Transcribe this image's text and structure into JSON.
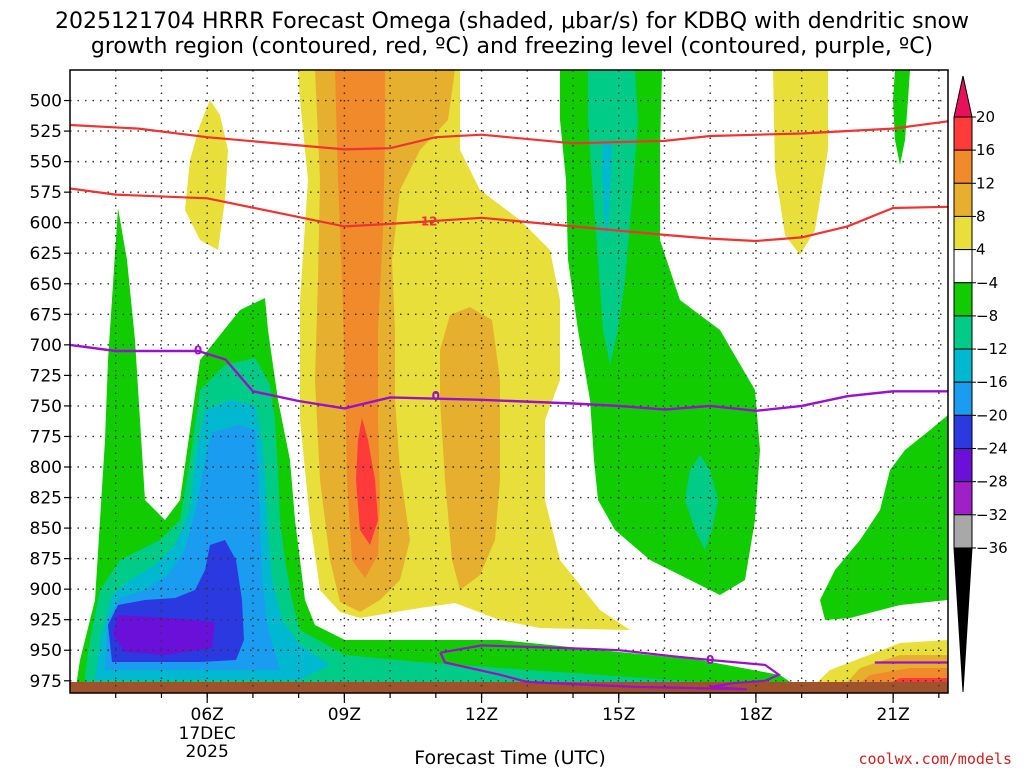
{
  "chart_data": {
    "type": "contour",
    "title_line1": "2025121704 HRRR Forecast Omega (shaded, μbar/s) for KDBQ with dendritic snow",
    "title_line2": "growth region (contoured, red, ºC) and freezing level (contoured, purple, ºC)",
    "xlabel": "Forecast Time (UTC)",
    "ylabel": "",
    "credit": "coolwx.com/models",
    "x_range_hours": [
      3,
      22.2
    ],
    "y_range_mb": [
      475,
      985
    ],
    "y_ticks": [
      500,
      525,
      550,
      575,
      600,
      625,
      650,
      675,
      700,
      725,
      750,
      775,
      800,
      825,
      850,
      875,
      900,
      925,
      950,
      975
    ],
    "x_ticks": [
      {
        "hour": 6,
        "label": "06Z",
        "sub1": "17DEC",
        "sub2": "2025"
      },
      {
        "hour": 9,
        "label": "09Z"
      },
      {
        "hour": 12,
        "label": "12Z"
      },
      {
        "hour": 15,
        "label": "15Z"
      },
      {
        "hour": 18,
        "label": "18Z"
      },
      {
        "hour": 21,
        "label": "21Z"
      }
    ],
    "colorbar": {
      "labels": [
        "20",
        "16",
        "12",
        "8",
        "4",
        "−4",
        "−8",
        "−12",
        "−16",
        "−20",
        "−24",
        "−28",
        "−32",
        "−36"
      ],
      "colors": [
        "#e8105a",
        "#ff3a3a",
        "#f08a2a",
        "#e6b02e",
        "#e8df3a",
        "#ffffff",
        "#11cc00",
        "#00cc88",
        "#00b8d0",
        "#1a9cf0",
        "#2a3ae0",
        "#6a10d8",
        "#a020c8",
        "#a8a8a8",
        "#000000"
      ]
    },
    "colors": {
      "green": "#11cc00",
      "teal": "#00cc88",
      "cyan": "#00b8d0",
      "lightblue": "#1a9cf0",
      "blue": "#2a3ae0",
      "purple": "#6a10d8",
      "yellow": "#e8df3a",
      "gold": "#e6b02e",
      "orange": "#f08a2a",
      "red": "#ff3a3a",
      "contour_red": "#ee3333",
      "contour_purple": "#9a10cc",
      "ground": "#a0522d"
    },
    "dgz_upper_label": "",
    "dgz_lower_label": "-12",
    "freezing_label": "0",
    "dgz_upper_contour": [
      [
        3,
        520
      ],
      [
        4.5,
        523
      ],
      [
        6,
        530
      ],
      [
        9,
        540
      ],
      [
        10,
        539
      ],
      [
        11,
        530
      ],
      [
        12,
        528
      ],
      [
        14,
        535
      ],
      [
        16,
        533
      ],
      [
        17,
        529
      ],
      [
        19,
        527
      ],
      [
        21,
        523
      ],
      [
        22.2,
        517
      ]
    ],
    "dgz_lower_contour": [
      [
        3,
        572
      ],
      [
        4,
        577
      ],
      [
        6,
        580
      ],
      [
        9,
        603
      ],
      [
        10,
        601
      ],
      [
        12,
        596
      ],
      [
        14,
        603
      ],
      [
        16,
        610
      ],
      [
        17,
        613
      ],
      [
        18,
        615
      ],
      [
        19,
        612
      ],
      [
        20,
        603
      ],
      [
        21,
        588
      ],
      [
        22.2,
        587
      ]
    ],
    "freezing_contour": [
      [
        3,
        700
      ],
      [
        4,
        705
      ],
      [
        5.8,
        705
      ],
      [
        6.4,
        712
      ],
      [
        7,
        738
      ],
      [
        8,
        746
      ],
      [
        9,
        752
      ],
      [
        10,
        743
      ],
      [
        12,
        745
      ],
      [
        14,
        748
      ],
      [
        15,
        750
      ],
      [
        16,
        753
      ],
      [
        17,
        750
      ],
      [
        18,
        754
      ],
      [
        19,
        750
      ],
      [
        20,
        742
      ],
      [
        21,
        738
      ],
      [
        22.2,
        738
      ]
    ],
    "low_freezing_loop": [
      [
        11.1,
        952
      ],
      [
        12,
        946
      ],
      [
        14.4,
        949
      ],
      [
        15,
        950
      ],
      [
        16.2,
        955
      ],
      [
        17,
        958
      ],
      [
        18.2,
        962
      ],
      [
        18.5,
        970
      ],
      [
        18.2,
        975
      ],
      [
        17.5,
        977
      ],
      [
        17,
        980
      ],
      [
        17.8,
        982
      ],
      [
        15.4,
        980
      ],
      [
        13,
        976
      ],
      [
        12.4,
        970
      ],
      [
        11.2,
        960
      ],
      [
        11.1,
        952
      ]
    ],
    "low_freezing_right": [
      [
        20.6,
        960
      ],
      [
        22.2,
        960
      ]
    ]
  }
}
